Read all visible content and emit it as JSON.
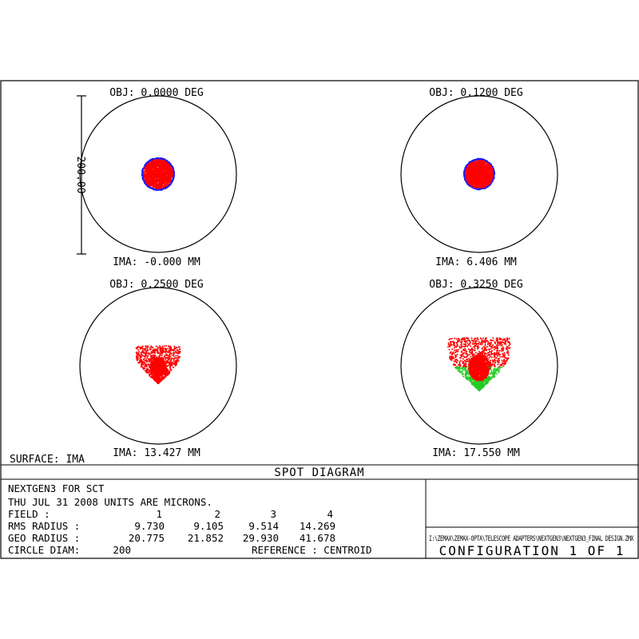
{
  "chart_data": {
    "type": "scatter",
    "title": "SPOT DIAGRAM",
    "surface_label": "SURFACE: IMA",
    "scale_bar_label": "200.00",
    "fields": [
      {
        "obj": "OBJ: 0.0000 DEG",
        "ima": "IMA: -0.000 MM",
        "spot": "round",
        "spread": 0.2,
        "green": false
      },
      {
        "obj": "OBJ: 0.1200 DEG",
        "ima": "IMA: 6.406 MM",
        "spot": "round",
        "spread": 0.19,
        "green": false
      },
      {
        "obj": "OBJ: 0.2500 DEG",
        "ima": "IMA: 13.427 MM",
        "spot": "coma",
        "spread": 0.3,
        "green": false
      },
      {
        "obj": "OBJ: 0.3250 DEG",
        "ima": "IMA: 17.550 MM",
        "spot": "coma",
        "spread": 0.42,
        "green": true
      }
    ],
    "series_colors": {
      "blue": "#1a1aff",
      "green": "#22cc22",
      "red": "#ff0000"
    },
    "info": {
      "line1": "NEXTGEN3 FOR SCT",
      "line2": "THU JUL 31 2008   UNITS ARE MICRONS.",
      "field_label": "FIELD        :",
      "field_values": [
        "1",
        "2",
        "3",
        "4"
      ],
      "rms_label": "RMS RADIUS  :",
      "rms_values": [
        "9.730",
        "9.105",
        "9.514",
        "14.269"
      ],
      "geo_label": "GEO RADIUS  :",
      "geo_values": [
        "20.775",
        "21.852",
        "29.930",
        "41.678"
      ],
      "circle_label": "CIRCLE DIAM:",
      "circle_value": "200",
      "reference": "REFERENCE    : CENTROID"
    },
    "file_path": "I:\\ZEMAX\\ZEMAX-OPTA\\TELESCOPE ADAPTERS\\NEXTGEN3\\NEXTGEN3_FINAL DESIGN.ZMX",
    "configuration": "CONFIGURATION 1 OF 1"
  }
}
